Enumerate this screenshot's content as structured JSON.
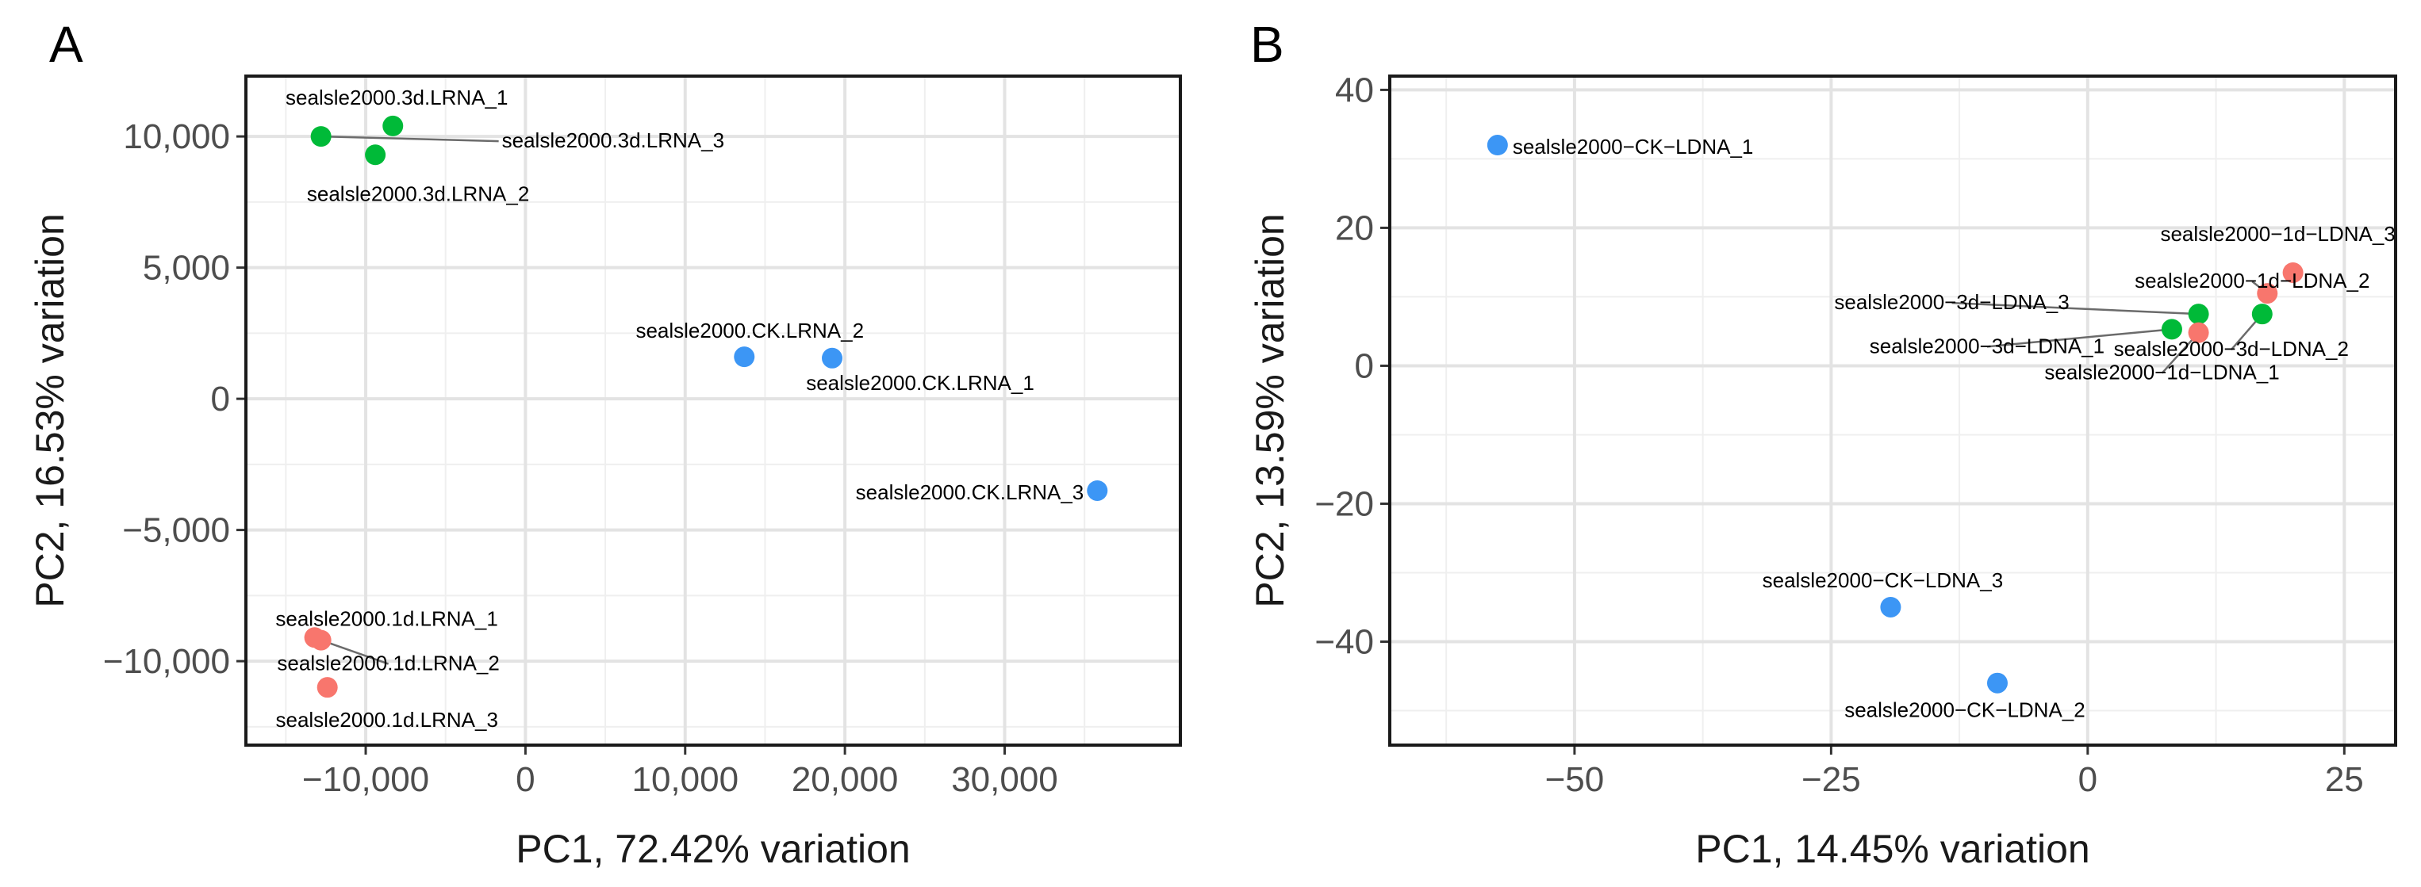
{
  "colors": {
    "1d": "#F8766D",
    "3d": "#00BA38",
    "CK": "#3C96F5"
  },
  "chart_data": [
    {
      "type": "scatter",
      "panel": "A",
      "xlabel": "PC1, 72.42% variation",
      "ylabel": "PC2, 16.53% variation",
      "xlim": [
        -17500,
        41000
      ],
      "ylim": [
        -13200,
        12300
      ],
      "xticks": [
        -10000,
        0,
        10000,
        20000,
        30000
      ],
      "xtick_labels": [
        "−10,000",
        "0",
        "10,000",
        "20,000",
        "30,000"
      ],
      "yticks": [
        -10000,
        -5000,
        0,
        5000,
        10000
      ],
      "ytick_labels": [
        "−10,000",
        "−5,000",
        "0",
        "5,000",
        "10,000"
      ],
      "grid": true,
      "points": [
        {
          "label": "sealsle2000.3d.LRNA_1",
          "group": "3d",
          "x": -8300,
          "y": 10400
        },
        {
          "label": "sealsle2000.3d.LRNA_3",
          "group": "3d",
          "x": -12800,
          "y": 10000
        },
        {
          "label": "sealsle2000.3d.LRNA_2",
          "group": "3d",
          "x": -9400,
          "y": 9300
        },
        {
          "label": "sealsle2000.CK.LRNA_2",
          "group": "CK",
          "x": 13700,
          "y": 1600
        },
        {
          "label": "sealsle2000.CK.LRNA_1",
          "group": "CK",
          "x": 19200,
          "y": 1550
        },
        {
          "label": "sealsle2000.CK.LRNA_3",
          "group": "CK",
          "x": 35800,
          "y": -3500
        },
        {
          "label": "sealsle2000.1d.LRNA_1",
          "group": "1d",
          "x": -13200,
          "y": -9100
        },
        {
          "label": "sealsle2000.1d.LRNA_2",
          "group": "1d",
          "x": -12800,
          "y": -9200
        },
        {
          "label": "sealsle2000.1d.LRNA_3",
          "group": "1d",
          "x": -12400,
          "y": -11000
        }
      ]
    },
    {
      "type": "scatter",
      "panel": "B",
      "xlabel": "PC1, 14.45% variation",
      "ylabel": "PC2, 13.59% variation",
      "xlim": [
        -68,
        30
      ],
      "ylim": [
        -55,
        42
      ],
      "xticks": [
        -50,
        -25,
        0,
        25
      ],
      "xtick_labels": [
        "−50",
        "−25",
        "0",
        "25"
      ],
      "yticks": [
        -40,
        -20,
        0,
        20,
        40
      ],
      "ytick_labels": [
        "−40",
        "−20",
        "0",
        "20",
        "40"
      ],
      "grid": true,
      "points": [
        {
          "label": "sealsle2000−CK−LDNA_1",
          "group": "CK",
          "x": -57.5,
          "y": 32
        },
        {
          "label": "sealsle2000−1d−LDNA_3",
          "group": "1d",
          "x": 20,
          "y": 13.5
        },
        {
          "label": "sealsle2000−1d−LDNA_2",
          "group": "1d",
          "x": 17.5,
          "y": 10.5
        },
        {
          "label": "sealsle2000−3d−LDNA_3",
          "group": "3d",
          "x": 10.8,
          "y": 7.5
        },
        {
          "label": "sealsle2000−3d−LDNA_2",
          "group": "3d",
          "x": 17,
          "y": 7.5
        },
        {
          "label": "sealsle2000−3d−LDNA_1",
          "group": "3d",
          "x": 8.2,
          "y": 5.3
        },
        {
          "label": "sealsle2000−1d−LDNA_1",
          "group": "1d",
          "x": 10.8,
          "y": 4.8
        },
        {
          "label": "sealsle2000−CK−LDNA_3",
          "group": "CK",
          "x": -19.2,
          "y": -35
        },
        {
          "label": "sealsle2000−CK−LDNA_2",
          "group": "CK",
          "x": -8.8,
          "y": -46
        }
      ]
    }
  ]
}
